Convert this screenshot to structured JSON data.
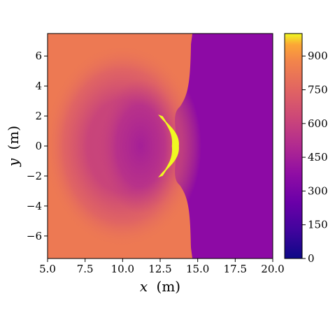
{
  "chart_data": {
    "type": "heatmap",
    "title": "",
    "xlabel_var": "x",
    "xlabel_unit": "(m)",
    "ylabel_var": "y",
    "ylabel_unit": "(m)",
    "xlim": [
      5.0,
      20.0
    ],
    "ylim": [
      -7.5,
      7.5
    ],
    "x_ticks": [
      5.0,
      7.5,
      10.0,
      12.5,
      15.0,
      17.5,
      20.0
    ],
    "x_tick_labels": [
      "5.0",
      "7.5",
      "10.0",
      "12.5",
      "15.0",
      "17.5",
      "20.0"
    ],
    "y_ticks": [
      6,
      4,
      2,
      0,
      -2,
      -4,
      -6
    ],
    "y_tick_labels": [
      "6",
      "4",
      "2",
      "0",
      "−2",
      "−4",
      "−6"
    ],
    "colormap": "plasma",
    "colorbar_range": [
      0,
      1000
    ],
    "colorbar_ticks": [
      0,
      150,
      300,
      450,
      600,
      750,
      900
    ],
    "colorbar_tick_labels": [
      "0",
      "150",
      "300",
      "450",
      "600",
      "750",
      "900"
    ],
    "colors": {
      "ambient": "#ed7953",
      "shocked_region": "#8d0aa5",
      "trough": "#c5407e",
      "hot_body": "#f0f921"
    },
    "features": {
      "body_y_extent": [
        -2.0,
        2.0
      ],
      "body_x_extent": [
        12.5,
        13.7
      ],
      "contact_front_x": 14.6,
      "trough_center_x": 10.0
    }
  }
}
